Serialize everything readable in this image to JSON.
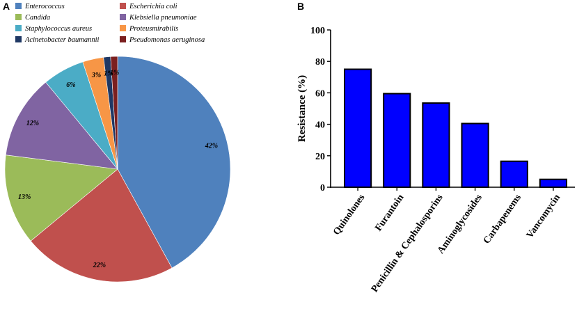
{
  "chart_data": [
    {
      "panel": "A",
      "type": "pie",
      "title": "",
      "legend_position": "top",
      "slices": [
        {
          "name": "Enterococcus",
          "value": 42,
          "label": "42%",
          "color": "#4F81BD"
        },
        {
          "name": "Escherichia coli",
          "value": 22,
          "label": "22%",
          "color": "#C0504D"
        },
        {
          "name": "Candida",
          "value": 13,
          "label": "13%",
          "color": "#9BBB59"
        },
        {
          "name": "Klebsiella pneumoniae",
          "value": 12,
          "label": "12%",
          "color": "#8064A2"
        },
        {
          "name": "Staphylococcus aureus",
          "value": 6,
          "label": "6%",
          "color": "#4BACC6"
        },
        {
          "name": "Proteusmirabilis",
          "value": 3,
          "label": "3%",
          "color": "#F79646"
        },
        {
          "name": "Acinetobacter baumannii",
          "value": 1,
          "label": "1%",
          "color": "#1F3864"
        },
        {
          "name": "Pseudomonas aeruginosa",
          "value": 1,
          "label": "1%",
          "color": "#7B1F1F"
        }
      ]
    },
    {
      "panel": "B",
      "type": "bar",
      "title": "",
      "xlabel": "",
      "ylabel": "Resistance (%)",
      "ylim": [
        0,
        100
      ],
      "yticks": [
        0,
        20,
        40,
        60,
        80,
        100
      ],
      "bar_color": "#0000FF",
      "categories": [
        "Quinolones",
        "Furantoin",
        "Penicillin & Cephalosporins",
        "Aminoglycosides",
        "Carbapenems",
        "Vancomycin"
      ],
      "values": [
        75,
        59.5,
        53.5,
        40.5,
        16.5,
        5
      ]
    }
  ]
}
